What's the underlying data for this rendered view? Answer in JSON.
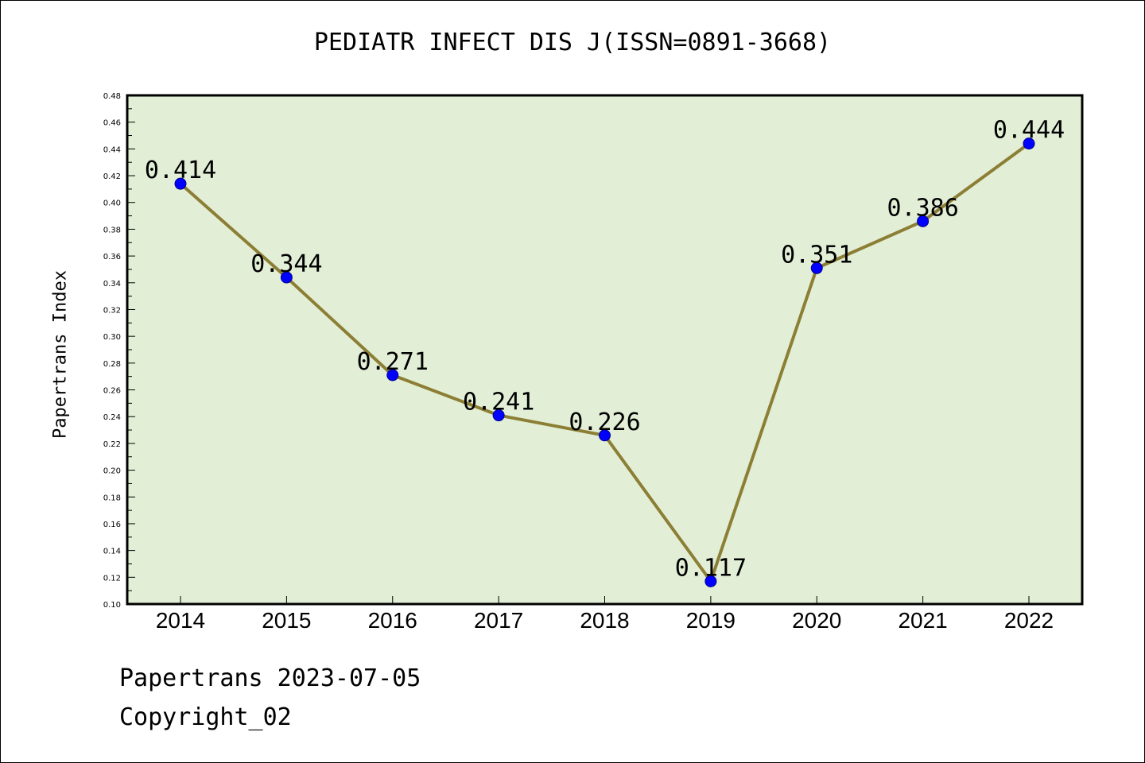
{
  "title": "PEDIATR INFECT DIS J(ISSN=0891-3668)",
  "footer": {
    "date_line": "Papertrans 2023-07-05",
    "copyright": "Copyright_02"
  },
  "colors": {
    "plot_background": "#e2efd6",
    "line": "#8c7f35",
    "marker": "#0000ff",
    "marker_edge": "#00008b"
  },
  "chart_data": {
    "type": "line",
    "title": "PEDIATR INFECT DIS J(ISSN=0891-3668)",
    "xlabel": "",
    "ylabel": "Papertrans Index",
    "categories": [
      "2014",
      "2015",
      "2016",
      "2017",
      "2018",
      "2019",
      "2020",
      "2021",
      "2022"
    ],
    "series": [
      {
        "values": [
          0.414,
          0.344,
          0.271,
          0.241,
          0.226,
          0.117,
          0.351,
          0.386,
          0.444
        ],
        "labels": [
          "0.414",
          "0.344",
          "0.271",
          "0.241",
          "0.226",
          "0.117",
          "0.351",
          "0.386",
          "0.444"
        ]
      }
    ],
    "ylim": [
      0.1,
      0.48
    ],
    "yticks": [
      "0.10",
      "0.12",
      "0.14",
      "0.16",
      "0.18",
      "0.20",
      "0.22",
      "0.24",
      "0.26",
      "0.28",
      "0.30",
      "0.32",
      "0.34",
      "0.36",
      "0.38",
      "0.40",
      "0.42",
      "0.44",
      "0.46",
      "0.48"
    ],
    "grid": false,
    "legend": "none"
  }
}
